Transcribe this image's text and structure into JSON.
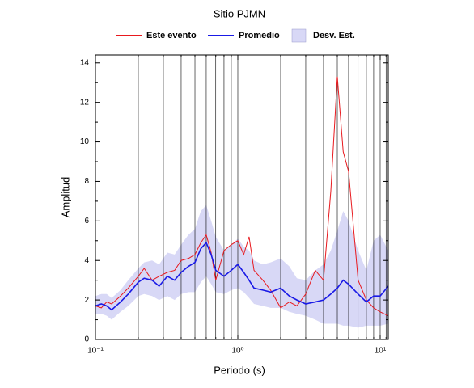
{
  "chart_data": {
    "type": "line",
    "title": "Sitio PJMN",
    "xlabel": "Periodo (s)",
    "ylabel": "Amplitud",
    "xscale": "log",
    "xlim": [
      0.1,
      11.4
    ],
    "ylim": [
      0,
      14.4
    ],
    "xticks": [
      {
        "value": 0.1,
        "label": "10⁻¹"
      },
      {
        "value": 1,
        "label": "10⁰"
      },
      {
        "value": 10,
        "label": "10¹"
      }
    ],
    "xminor_ticks": [
      0.2,
      0.3,
      0.4,
      0.5,
      0.6,
      0.7,
      0.8,
      0.9,
      2,
      3,
      4,
      5,
      6,
      7,
      8,
      9,
      11
    ],
    "yticks": [
      0,
      2,
      4,
      6,
      8,
      10,
      12,
      14
    ],
    "yminor_ticks": [
      1,
      3,
      5,
      7,
      9,
      11,
      13
    ],
    "grid": "x",
    "x": [
      0.1,
      0.11,
      0.12,
      0.13,
      0.15,
      0.17,
      0.2,
      0.22,
      0.25,
      0.28,
      0.32,
      0.36,
      0.4,
      0.45,
      0.5,
      0.55,
      0.6,
      0.65,
      0.7,
      0.8,
      0.9,
      1.0,
      1.1,
      1.2,
      1.3,
      1.5,
      1.7,
      2.0,
      2.3,
      2.6,
      3.0,
      3.5,
      4.0,
      4.5,
      5.0,
      5.5,
      6.0,
      7.0,
      8.0,
      9.0,
      10,
      11.4
    ],
    "band": {
      "name": "Desv. Est.",
      "color": "#d8d8f6",
      "upper": [
        2.2,
        2.3,
        2.3,
        2.1,
        2.5,
        3.0,
        3.6,
        3.9,
        4.0,
        3.8,
        4.4,
        4.3,
        4.8,
        5.3,
        5.6,
        6.5,
        6.8,
        6.0,
        5.2,
        4.5,
        4.8,
        5.1,
        4.7,
        4.5,
        4.0,
        3.8,
        3.9,
        4.1,
        3.7,
        3.1,
        3.0,
        3.5,
        3.8,
        4.5,
        5.5,
        6.5,
        6.0,
        4.5,
        3.5,
        5.0,
        5.3,
        4.5
      ],
      "lower": [
        1.3,
        1.3,
        1.2,
        1.0,
        1.4,
        1.7,
        2.2,
        2.3,
        2.2,
        2.0,
        2.2,
        2.0,
        2.3,
        2.4,
        2.4,
        2.9,
        3.2,
        2.8,
        2.4,
        2.3,
        2.5,
        2.6,
        2.4,
        2.1,
        1.8,
        1.7,
        1.6,
        1.6,
        1.4,
        1.3,
        1.2,
        1.0,
        0.8,
        0.8,
        0.8,
        0.7,
        0.7,
        0.6,
        0.7,
        0.7,
        0.7,
        0.8
      ]
    },
    "series": [
      {
        "name": "Este evento",
        "color": "#e8191e",
        "values": [
          1.7,
          1.6,
          1.9,
          1.8,
          2.2,
          2.6,
          3.2,
          3.6,
          3.0,
          3.2,
          3.4,
          3.5,
          4.0,
          4.1,
          4.3,
          4.9,
          5.3,
          4.4,
          3.0,
          4.5,
          4.8,
          5.0,
          4.3,
          5.2,
          3.5,
          3.0,
          2.5,
          1.6,
          1.9,
          1.7,
          2.3,
          3.5,
          3.0,
          7.5,
          13.3,
          9.5,
          8.5,
          3.0,
          2.0,
          1.6,
          1.4,
          1.2
        ]
      },
      {
        "name": "Promedio",
        "color": "#1a1ae6",
        "values": [
          1.7,
          1.8,
          1.7,
          1.5,
          1.9,
          2.3,
          2.9,
          3.1,
          3.0,
          2.7,
          3.2,
          3.0,
          3.4,
          3.7,
          3.9,
          4.6,
          4.9,
          4.3,
          3.5,
          3.2,
          3.5,
          3.8,
          3.4,
          3.0,
          2.6,
          2.5,
          2.4,
          2.6,
          2.2,
          2.0,
          1.8,
          1.9,
          2.0,
          2.3,
          2.6,
          3.0,
          2.8,
          2.3,
          1.9,
          2.2,
          2.2,
          2.7
        ]
      }
    ]
  }
}
